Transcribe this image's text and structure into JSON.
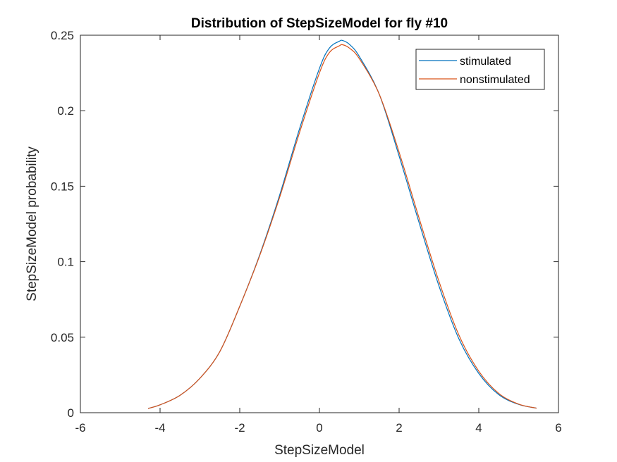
{
  "chart_data": {
    "type": "line",
    "title": "Distribution of StepSizeModel for fly #10",
    "xlabel": "StepSizeModel",
    "ylabel": "StepSizeModel probability",
    "xlim": [
      -6,
      6
    ],
    "ylim": [
      0,
      0.25
    ],
    "xticks": [
      -6,
      -4,
      -2,
      0,
      2,
      4,
      6
    ],
    "xtick_labels": [
      "-6",
      "-4",
      "-2",
      "0",
      "2",
      "4",
      "6"
    ],
    "yticks": [
      0,
      0.05,
      0.1,
      0.15,
      0.2,
      0.25
    ],
    "ytick_labels": [
      "0",
      "0.05",
      "0.1",
      "0.15",
      "0.2",
      "0.25"
    ],
    "grid": false,
    "legend_position": "top-right",
    "series": [
      {
        "name": "stimulated",
        "color": "#0072BD",
        "x": [
          -4.3,
          -4.0,
          -3.5,
          -3.0,
          -2.5,
          -2.0,
          -1.5,
          -1.0,
          -0.5,
          0.0,
          0.25,
          0.5,
          0.58,
          0.75,
          1.0,
          1.5,
          2.0,
          2.5,
          3.0,
          3.5,
          4.0,
          4.5,
          5.0,
          5.45
        ],
        "y": [
          0.0028,
          0.0052,
          0.0115,
          0.0228,
          0.0405,
          0.0705,
          0.1045,
          0.144,
          0.188,
          0.228,
          0.2415,
          0.246,
          0.2465,
          0.244,
          0.236,
          0.211,
          0.17,
          0.126,
          0.084,
          0.049,
          0.026,
          0.012,
          0.0055,
          0.003
        ]
      },
      {
        "name": "nonstimulated",
        "color": "#D95319",
        "x": [
          -4.3,
          -4.0,
          -3.5,
          -3.0,
          -2.5,
          -2.0,
          -1.5,
          -1.0,
          -0.5,
          0.0,
          0.25,
          0.5,
          0.58,
          0.75,
          1.0,
          1.5,
          2.0,
          2.5,
          3.0,
          3.5,
          4.0,
          4.5,
          5.0,
          5.45
        ],
        "y": [
          0.0028,
          0.0052,
          0.0115,
          0.0228,
          0.0405,
          0.0705,
          0.104,
          0.1425,
          0.1855,
          0.225,
          0.2385,
          0.243,
          0.2437,
          0.2415,
          0.2345,
          0.211,
          0.1725,
          0.129,
          0.087,
          0.0515,
          0.0275,
          0.0128,
          0.0057,
          0.003
        ]
      }
    ]
  }
}
